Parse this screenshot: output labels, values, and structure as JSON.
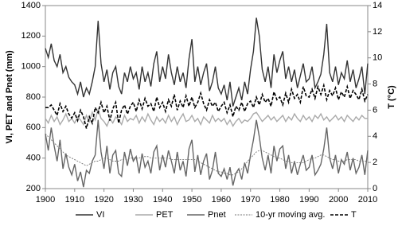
{
  "chart_data": {
    "type": "line",
    "y_label": "VI, PET and Pnet (mm)",
    "y2_label": "T (°C)",
    "x": [
      1900,
      1901,
      1902,
      1903,
      1904,
      1905,
      1906,
      1907,
      1908,
      1909,
      1910,
      1911,
      1912,
      1913,
      1914,
      1915,
      1916,
      1917,
      1918,
      1919,
      1920,
      1921,
      1922,
      1923,
      1924,
      1925,
      1926,
      1927,
      1928,
      1929,
      1930,
      1931,
      1932,
      1933,
      1934,
      1935,
      1936,
      1937,
      1938,
      1939,
      1940,
      1941,
      1942,
      1943,
      1944,
      1945,
      1946,
      1947,
      1948,
      1949,
      1950,
      1951,
      1952,
      1953,
      1954,
      1955,
      1956,
      1957,
      1958,
      1959,
      1960,
      1961,
      1962,
      1963,
      1964,
      1965,
      1966,
      1967,
      1968,
      1969,
      1970,
      1971,
      1972,
      1973,
      1974,
      1975,
      1976,
      1977,
      1978,
      1979,
      1980,
      1981,
      1982,
      1983,
      1984,
      1985,
      1986,
      1987,
      1988,
      1989,
      1990,
      1991,
      1992,
      1993,
      1994,
      1995,
      1996,
      1997,
      1998,
      1999,
      2000,
      2001,
      2002,
      2003,
      2004,
      2005,
      2006,
      2007,
      2008,
      2009,
      2010
    ],
    "xlim": [
      1900,
      2010
    ],
    "xticks": [
      1900,
      1910,
      1920,
      1930,
      1940,
      1950,
      1960,
      1970,
      1980,
      1990,
      2000,
      2010
    ],
    "ylim": [
      200,
      1400
    ],
    "yticks": [
      200,
      400,
      600,
      800,
      1000,
      1200,
      1400
    ],
    "y2lim": [
      0,
      14
    ],
    "y2ticks": [
      0,
      2,
      4,
      6,
      8,
      10,
      12,
      14
    ],
    "grid": false,
    "legend": "bottom",
    "series": [
      {
        "name": "VI",
        "color": "#333333",
        "style": "solid",
        "values": [
          1120,
          1060,
          1150,
          1040,
          1000,
          1080,
          960,
          1000,
          930,
          900,
          880,
          820,
          900,
          800,
          860,
          820,
          900,
          1000,
          1300,
          1020,
          900,
          980,
          850,
          960,
          1000,
          870,
          820,
          960,
          900,
          1000,
          920,
          960,
          850,
          1000,
          900,
          960,
          870,
          1020,
          1100,
          900,
          1000,
          920,
          1080,
          960,
          880,
          1000,
          900,
          960,
          860,
          1050,
          1180,
          900,
          1000,
          880,
          960,
          1020,
          840,
          900,
          1000,
          860,
          820,
          880,
          780,
          900,
          740,
          800,
          860,
          780,
          900,
          820,
          980,
          1100,
          1320,
          1200,
          980,
          900,
          1000,
          860,
          1080,
          960,
          1040,
          1100,
          920,
          1000,
          900,
          980,
          860,
          940,
          1020,
          900,
          920,
          1000,
          860,
          900,
          950,
          1080,
          1280,
          960,
          900,
          1000,
          880,
          960,
          920,
          1040,
          900,
          980,
          860,
          920,
          1000,
          820,
          1020
        ]
      },
      {
        "name": "PET",
        "color": "#aaaaaa",
        "style": "solid",
        "values": [
          660,
          630,
          680,
          640,
          670,
          620,
          650,
          690,
          640,
          660,
          630,
          670,
          650,
          620,
          680,
          640,
          700,
          650,
          720,
          660,
          640,
          610,
          660,
          630,
          670,
          650,
          620,
          680,
          640,
          660,
          650,
          680,
          630,
          670,
          640,
          690,
          650,
          620,
          670,
          640,
          660,
          630,
          680,
          640,
          670,
          620,
          660,
          690,
          640,
          650,
          680,
          640,
          660,
          620,
          670,
          650,
          630,
          680,
          640,
          660,
          640,
          660,
          620,
          650,
          610,
          640,
          660,
          630,
          650,
          640,
          660,
          690,
          700,
          670,
          640,
          660,
          680,
          650,
          670,
          640,
          660,
          680,
          640,
          670,
          650,
          690,
          660,
          640,
          680,
          650,
          670,
          640,
          680,
          660,
          690,
          650,
          670,
          640,
          660,
          680,
          650,
          670,
          640,
          680,
          660,
          640,
          670,
          650,
          680,
          660,
          660
        ]
      },
      {
        "name": "Pnet",
        "color": "#666666",
        "style": "solid",
        "values": [
          560,
          450,
          600,
          480,
          380,
          520,
          330,
          430,
          340,
          290,
          360,
          250,
          310,
          210,
          320,
          300,
          380,
          420,
          650,
          440,
          330,
          480,
          300,
          420,
          450,
          300,
          280,
          440,
          350,
          460,
          380,
          410,
          300,
          430,
          340,
          380,
          300,
          440,
          480,
          320,
          420,
          340,
          450,
          380,
          300,
          440,
          320,
          380,
          280,
          460,
          520,
          310,
          420,
          290,
          380,
          430,
          260,
          320,
          440,
          300,
          280,
          330,
          260,
          340,
          220,
          300,
          330,
          260,
          370,
          300,
          420,
          520,
          650,
          540,
          400,
          320,
          420,
          300,
          480,
          380,
          460,
          480,
          330,
          420,
          300,
          380,
          290,
          360,
          420,
          320,
          340,
          420,
          290,
          320,
          360,
          460,
          600,
          400,
          330,
          420,
          300,
          390,
          360,
          440,
          320,
          400,
          300,
          340,
          420,
          290,
          450
        ]
      },
      {
        "name": "10-yr moving avg.",
        "color": "#777777",
        "style": "dotted",
        "values": [
          560,
          540,
          520,
          500,
          480,
          460,
          440,
          420,
          410,
          400,
          390,
          380,
          370,
          360,
          350,
          360,
          370,
          380,
          380,
          390,
          400,
          400,
          390,
          380,
          380,
          380,
          390,
          390,
          390,
          400,
          400,
          400,
          400,
          410,
          410,
          410,
          400,
          400,
          400,
          400,
          400,
          400,
          400,
          390,
          390,
          390,
          390,
          390,
          390,
          390,
          390,
          390,
          380,
          370,
          360,
          350,
          340,
          330,
          320,
          310,
          310,
          300,
          300,
          290,
          290,
          300,
          310,
          330,
          350,
          380,
          400,
          420,
          440,
          450,
          450,
          440,
          430,
          420,
          410,
          400,
          400,
          390,
          380,
          380,
          370,
          370,
          370,
          370,
          370,
          380,
          390,
          400,
          400,
          410,
          420,
          420,
          410,
          400,
          390,
          390,
          380,
          380,
          380,
          390,
          390,
          390,
          390,
          380,
          380,
          380,
          380
        ]
      },
      {
        "name": "T",
        "color": "#000000",
        "style": "dashed",
        "axis": "y2",
        "values": [
          6.2,
          6.2,
          6.4,
          6.0,
          5.6,
          6.5,
          5.9,
          6.3,
          5.7,
          5.4,
          5.8,
          5.2,
          6.0,
          5.5,
          4.6,
          5.5,
          5.0,
          6.2,
          5.8,
          6.6,
          5.8,
          6.3,
          5.2,
          6.1,
          6.6,
          5.0,
          6.0,
          6.4,
          5.7,
          6.3,
          6.6,
          5.9,
          6.8,
          6.1,
          6.9,
          6.3,
          6.5,
          5.9,
          7.0,
          6.2,
          6.6,
          5.9,
          6.8,
          6.3,
          7.2,
          6.0,
          6.7,
          6.2,
          7.1,
          6.3,
          7.0,
          6.2,
          6.6,
          7.3,
          6.5,
          6.0,
          6.8,
          6.3,
          6.6,
          5.9,
          6.3,
          6.6,
          5.8,
          6.4,
          5.5,
          6.3,
          6.0,
          6.6,
          5.9,
          6.5,
          6.7,
          6.2,
          7.0,
          6.4,
          7.2,
          6.6,
          6.9,
          6.3,
          7.4,
          6.8,
          7.0,
          6.4,
          7.3,
          6.6,
          7.6,
          6.9,
          7.2,
          6.6,
          7.8,
          7.1,
          7.0,
          7.6,
          6.9,
          7.8,
          7.2,
          7.9,
          6.8,
          7.5,
          7.1,
          7.7,
          6.8,
          7.4,
          7.0,
          7.8,
          6.9,
          7.5,
          7.2,
          6.8,
          7.6,
          6.7,
          7.2
        ]
      }
    ]
  }
}
